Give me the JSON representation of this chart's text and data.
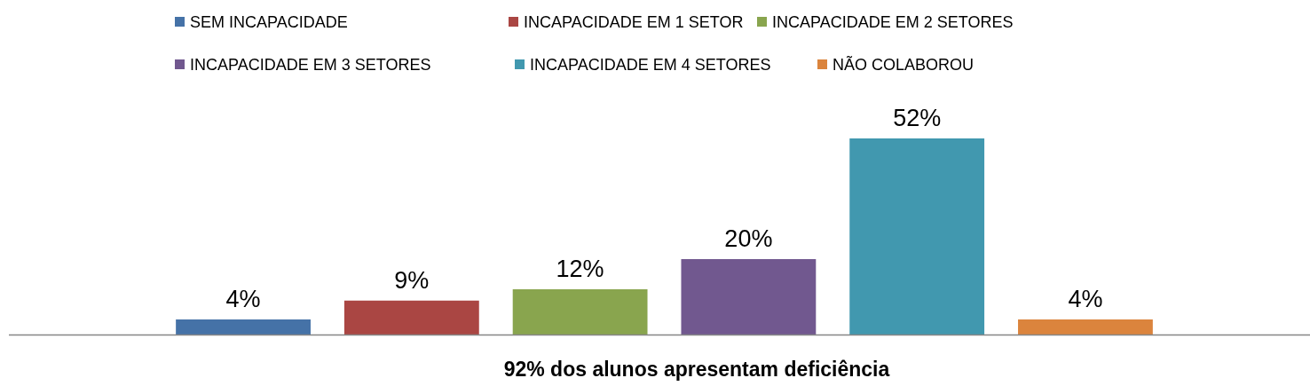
{
  "chart_data": {
    "type": "bar",
    "xlabel": "92% dos alunos apresentam deficiência",
    "categories": [
      null
    ],
    "legend": "top",
    "series": [
      {
        "name": "SEM INCAPACIDADE",
        "color": "#4572a7",
        "values": [
          4
        ],
        "value_labels": [
          "4%"
        ]
      },
      {
        "name": "INCAPACIDADE EM 1 SETOR",
        "color": "#aa4643",
        "values": [
          9
        ],
        "value_labels": [
          "9%"
        ]
      },
      {
        "name": "INCAPACIDADE EM 2 SETORES",
        "color": "#89a54e",
        "values": [
          12
        ],
        "value_labels": [
          "12%"
        ]
      },
      {
        "name": "INCAPACIDADE EM 3 SETORES",
        "color": "#71588f",
        "values": [
          20
        ],
        "value_labels": [
          "20%"
        ]
      },
      {
        "name": "INCAPACIDADE EM 4 SETORES",
        "color": "#4198af",
        "values": [
          52
        ],
        "value_labels": [
          "52%"
        ]
      },
      {
        "name": "NÃO COLABOROU",
        "color": "#db843d",
        "values": [
          4
        ],
        "value_labels": [
          "4%"
        ]
      }
    ]
  }
}
